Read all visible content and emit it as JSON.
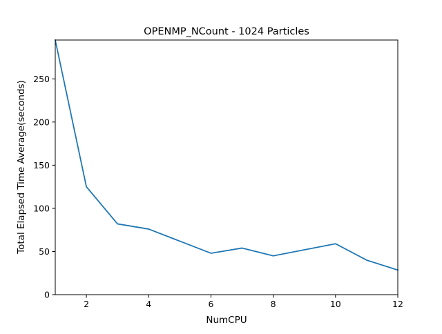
{
  "chart_data": {
    "type": "line",
    "title": "OPENMP_NCount - 1024 Particles",
    "xlabel": "NumCPU",
    "ylabel": "Total Elapsed Time Average(seconds)",
    "xlim": [
      1,
      12
    ],
    "ylim": [
      0,
      295
    ],
    "x_ticks": [
      2,
      4,
      6,
      8,
      10,
      12
    ],
    "y_ticks": [
      0,
      50,
      100,
      150,
      200,
      250
    ],
    "grid": false,
    "legend": "none",
    "series": [
      {
        "color": "#1f77b4",
        "x": [
          1,
          2,
          3,
          4,
          5,
          6,
          7,
          8,
          9,
          10,
          11,
          12
        ],
        "y": [
          295,
          125,
          82,
          76,
          62,
          48,
          54,
          45,
          52,
          59,
          40,
          28.5
        ]
      }
    ]
  }
}
